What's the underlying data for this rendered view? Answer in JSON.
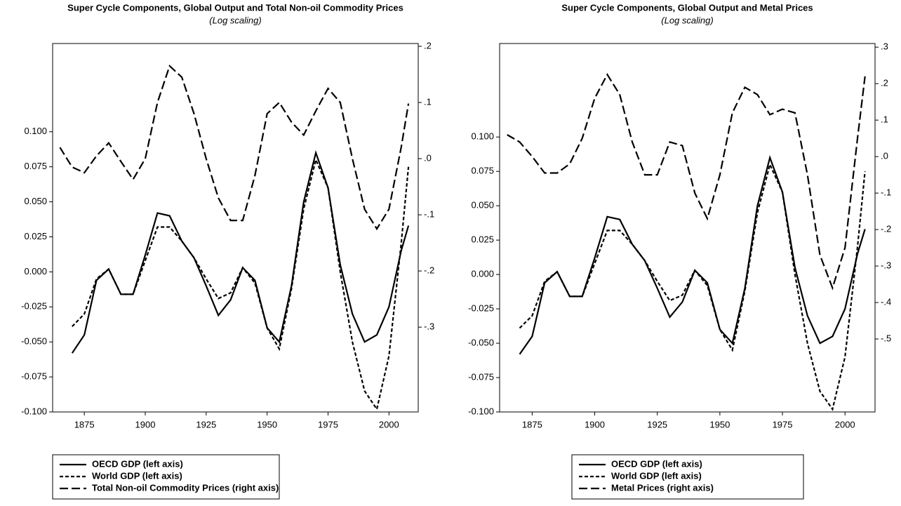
{
  "chart_data": [
    {
      "type": "line",
      "title": "Super Cycle Components, Global Output and Total Non-oil Commodity Prices",
      "subtitle": "(Log scaling)",
      "x": [
        1865,
        1870,
        1875,
        1880,
        1885,
        1890,
        1895,
        1900,
        1905,
        1910,
        1915,
        1920,
        1925,
        1930,
        1935,
        1940,
        1945,
        1950,
        1955,
        1960,
        1965,
        1970,
        1975,
        1980,
        1985,
        1990,
        1995,
        2000,
        2005,
        2008
      ],
      "xlim": [
        1862,
        2012
      ],
      "xticks": [
        1875,
        1900,
        1925,
        1950,
        1975,
        2000
      ],
      "ylim": [
        -0.1,
        0.163
      ],
      "yticks": [
        {
          "value": -0.1,
          "label": "-0.100"
        },
        {
          "value": -0.075,
          "label": "-0.075"
        },
        {
          "value": -0.05,
          "label": "-0.050"
        },
        {
          "value": -0.025,
          "label": "-0.025"
        },
        {
          "value": 0,
          "label": "0.000"
        },
        {
          "value": 0.025,
          "label": "0.025"
        },
        {
          "value": 0.05,
          "label": "0.050"
        },
        {
          "value": 0.075,
          "label": "0.075"
        },
        {
          "value": 0.1,
          "label": "0.100"
        }
      ],
      "y2lim": [
        -0.451,
        0.205
      ],
      "y2ticks": [
        {
          "value": -0.3,
          "label": "-.3"
        },
        {
          "value": -0.2,
          "label": "-.2"
        },
        {
          "value": -0.1,
          "label": "-.1"
        },
        {
          "value": 0,
          "label": ".0"
        },
        {
          "value": 0.1,
          "label": ".1"
        },
        {
          "value": 0.2,
          "label": ".2"
        }
      ],
      "series": [
        {
          "name": "OECD GDP (left axis)",
          "color": "#000000",
          "dash": "solid",
          "values": [
            null,
            -0.058,
            -0.045,
            -0.006,
            0.002,
            -0.016,
            -0.016,
            0.012,
            0.042,
            0.04,
            0.022,
            0.01,
            -0.01,
            -0.031,
            -0.02,
            0.003,
            -0.006,
            -0.04,
            -0.05,
            -0.01,
            0.05,
            0.085,
            0.06,
            0.005,
            -0.03,
            -0.05,
            -0.045,
            -0.025,
            0.015,
            0.033
          ]
        },
        {
          "name": "World GDP (left axis)",
          "color": "#000000",
          "dash": "short",
          "values": [
            null,
            -0.039,
            -0.03,
            -0.005,
            0.002,
            -0.016,
            -0.016,
            0.008,
            0.032,
            0.032,
            0.022,
            0.01,
            -0.005,
            -0.019,
            -0.015,
            0.003,
            -0.008,
            -0.04,
            -0.055,
            -0.012,
            0.045,
            0.08,
            0.06,
            0.0,
            -0.05,
            -0.085,
            -0.098,
            -0.06,
            0.02,
            0.075
          ]
        },
        {
          "name": "Total Non-oil Commodity Prices (right axis)",
          "color": "#000000",
          "dash": "long",
          "axis": "y2",
          "values": [
            0.02,
            -0.015,
            -0.025,
            0.005,
            0.028,
            -0.005,
            -0.037,
            0.0,
            0.1,
            0.165,
            0.145,
            0.08,
            0.0,
            -0.07,
            -0.11,
            -0.11,
            -0.03,
            0.08,
            0.1,
            0.065,
            0.042,
            0.085,
            0.125,
            0.1,
            0.0,
            -0.09,
            -0.125,
            -0.09,
            0.02,
            0.098
          ]
        }
      ]
    },
    {
      "type": "line",
      "title": "Super Cycle Components, Global Output and Metal Prices",
      "subtitle": "(Log scaling)",
      "x": [
        1865,
        1870,
        1875,
        1880,
        1885,
        1890,
        1895,
        1900,
        1905,
        1910,
        1915,
        1920,
        1925,
        1930,
        1935,
        1940,
        1945,
        1950,
        1955,
        1960,
        1965,
        1970,
        1975,
        1980,
        1985,
        1990,
        1995,
        2000,
        2005,
        2008
      ],
      "xlim": [
        1862,
        2012
      ],
      "xticks": [
        1875,
        1900,
        1925,
        1950,
        1975,
        2000
      ],
      "ylim": [
        -0.1,
        0.168
      ],
      "yticks": [
        {
          "value": -0.1,
          "label": "-0.100"
        },
        {
          "value": -0.075,
          "label": "-0.075"
        },
        {
          "value": -0.05,
          "label": "-0.050"
        },
        {
          "value": -0.025,
          "label": "-0.025"
        },
        {
          "value": 0,
          "label": "0.000"
        },
        {
          "value": 0.025,
          "label": "0.025"
        },
        {
          "value": 0.05,
          "label": "0.050"
        },
        {
          "value": 0.075,
          "label": "0.075"
        },
        {
          "value": 0.1,
          "label": "0.100"
        }
      ],
      "y2lim": [
        -0.7,
        0.31
      ],
      "y2ticks": [
        {
          "value": -0.5,
          "label": "-.5"
        },
        {
          "value": -0.4,
          "label": "-.4"
        },
        {
          "value": -0.3,
          "label": "-.3"
        },
        {
          "value": -0.2,
          "label": "-.2"
        },
        {
          "value": -0.1,
          "label": "-.1"
        },
        {
          "value": 0,
          "label": ".0"
        },
        {
          "value": 0.1,
          "label": ".1"
        },
        {
          "value": 0.2,
          "label": ".2"
        },
        {
          "value": 0.3,
          "label": ".3"
        }
      ],
      "series": [
        {
          "name": "OECD GDP (left axis)",
          "color": "#000000",
          "dash": "solid",
          "values": [
            null,
            -0.058,
            -0.045,
            -0.006,
            0.002,
            -0.016,
            -0.016,
            0.012,
            0.042,
            0.04,
            0.022,
            0.01,
            -0.01,
            -0.031,
            -0.02,
            0.003,
            -0.006,
            -0.04,
            -0.05,
            -0.01,
            0.05,
            0.085,
            0.06,
            0.005,
            -0.03,
            -0.05,
            -0.045,
            -0.025,
            0.015,
            0.033
          ]
        },
        {
          "name": "World GDP (left axis)",
          "color": "#000000",
          "dash": "short",
          "values": [
            null,
            -0.039,
            -0.03,
            -0.005,
            0.002,
            -0.016,
            -0.016,
            0.008,
            0.032,
            0.032,
            0.022,
            0.01,
            -0.005,
            -0.019,
            -0.015,
            0.003,
            -0.008,
            -0.04,
            -0.055,
            -0.012,
            0.045,
            0.08,
            0.06,
            0.0,
            -0.05,
            -0.085,
            -0.098,
            -0.06,
            0.02,
            0.075
          ]
        },
        {
          "name": "Metal Prices (right axis)",
          "color": "#000000",
          "dash": "long",
          "axis": "y2",
          "values": [
            0.06,
            0.04,
            0.0,
            -0.045,
            -0.045,
            -0.02,
            0.05,
            0.16,
            0.225,
            0.17,
            0.04,
            -0.05,
            -0.05,
            0.04,
            0.03,
            -0.1,
            -0.17,
            -0.05,
            0.12,
            0.19,
            0.17,
            0.115,
            0.13,
            0.12,
            -0.05,
            -0.27,
            -0.36,
            -0.25,
            0.05,
            0.22
          ]
        }
      ]
    }
  ]
}
